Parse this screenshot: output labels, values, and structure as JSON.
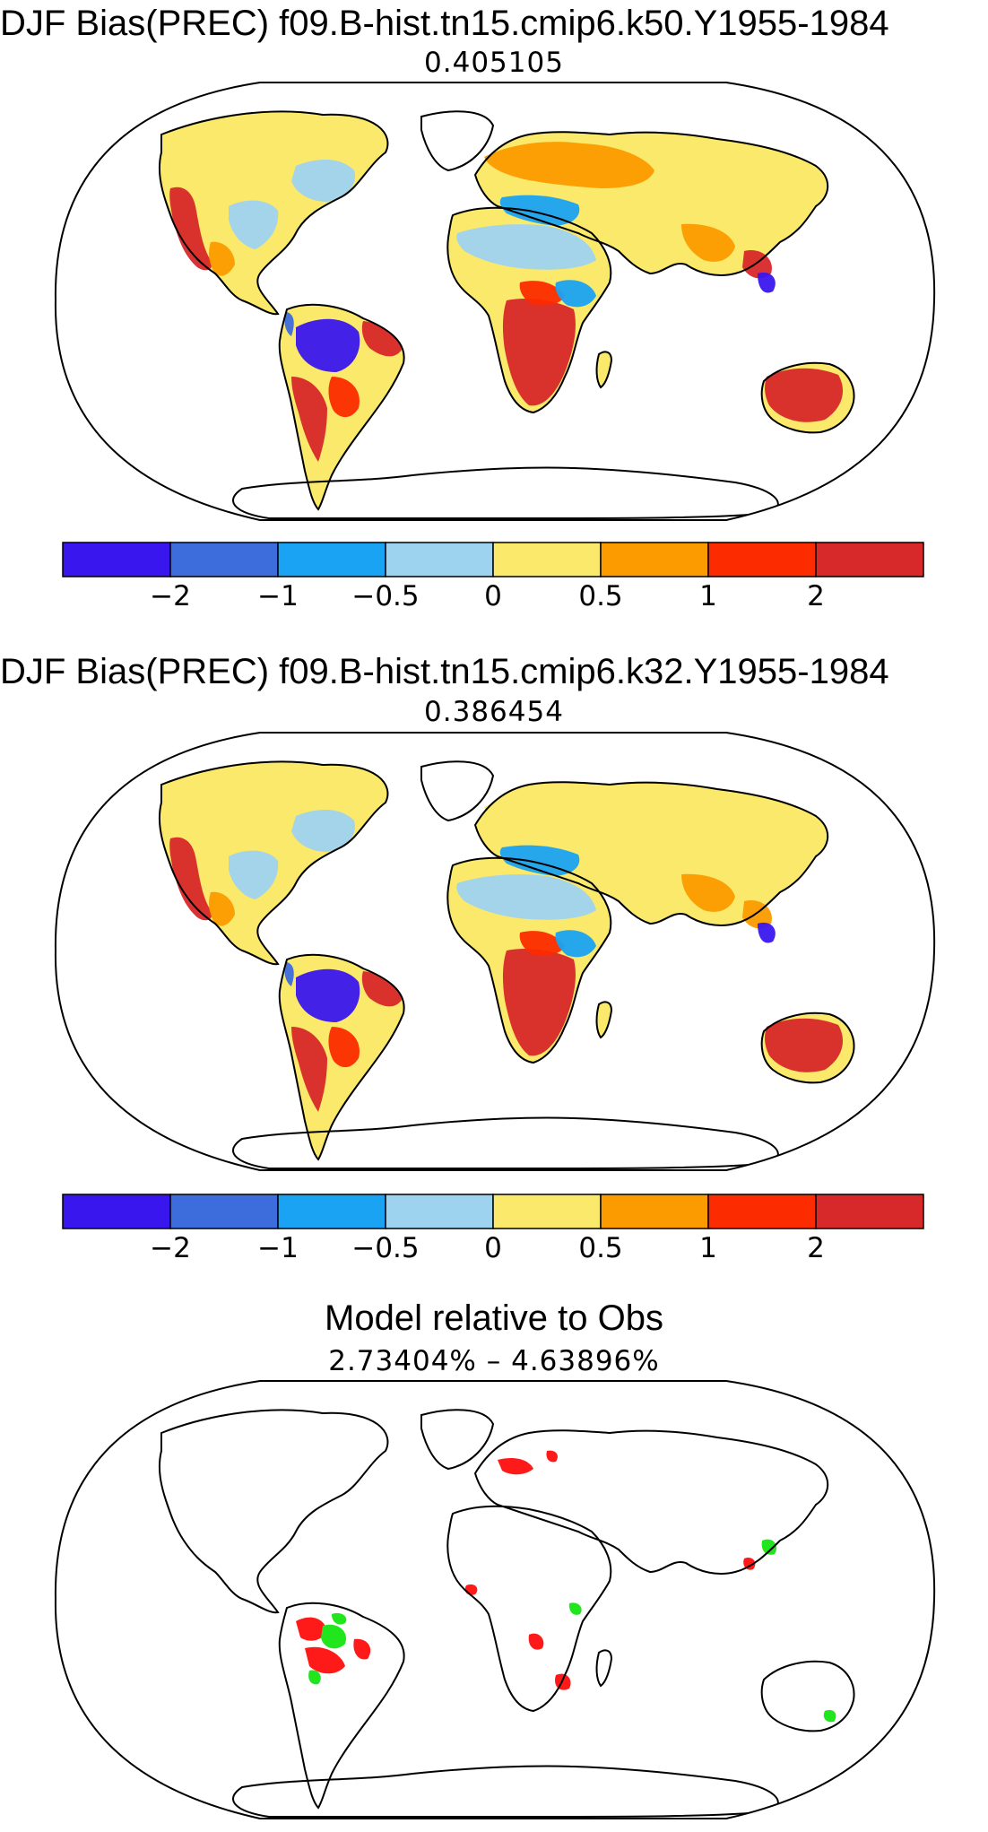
{
  "panels": [
    {
      "title": "DJF Bias(PREC) f09.B-hist.tn15.cmip6.k50.Y1955-1984",
      "stat": "0.405105",
      "fill": "bias"
    },
    {
      "title": "DJF Bias(PREC) f09.B-hist.tn15.cmip6.k32.Y1955-1984",
      "stat": "0.386454",
      "fill": "bias"
    },
    {
      "title": "Model relative to Obs",
      "stat": "2.73404%  –  4.63896%",
      "fill": "sig"
    }
  ],
  "colorbar": {
    "colors": [
      "#3a16ee",
      "#3d6ddc",
      "#1aa3f2",
      "#9ed3f0",
      "#fae96a",
      "#fb9b00",
      "#fc2b00",
      "#d7282a"
    ],
    "labels": [
      "−2",
      "−1",
      "−0.5",
      "0",
      "0.5",
      "1",
      "2"
    ]
  },
  "sig_colors": {
    "red": "#ff1a1a",
    "green": "#22e61d"
  }
}
